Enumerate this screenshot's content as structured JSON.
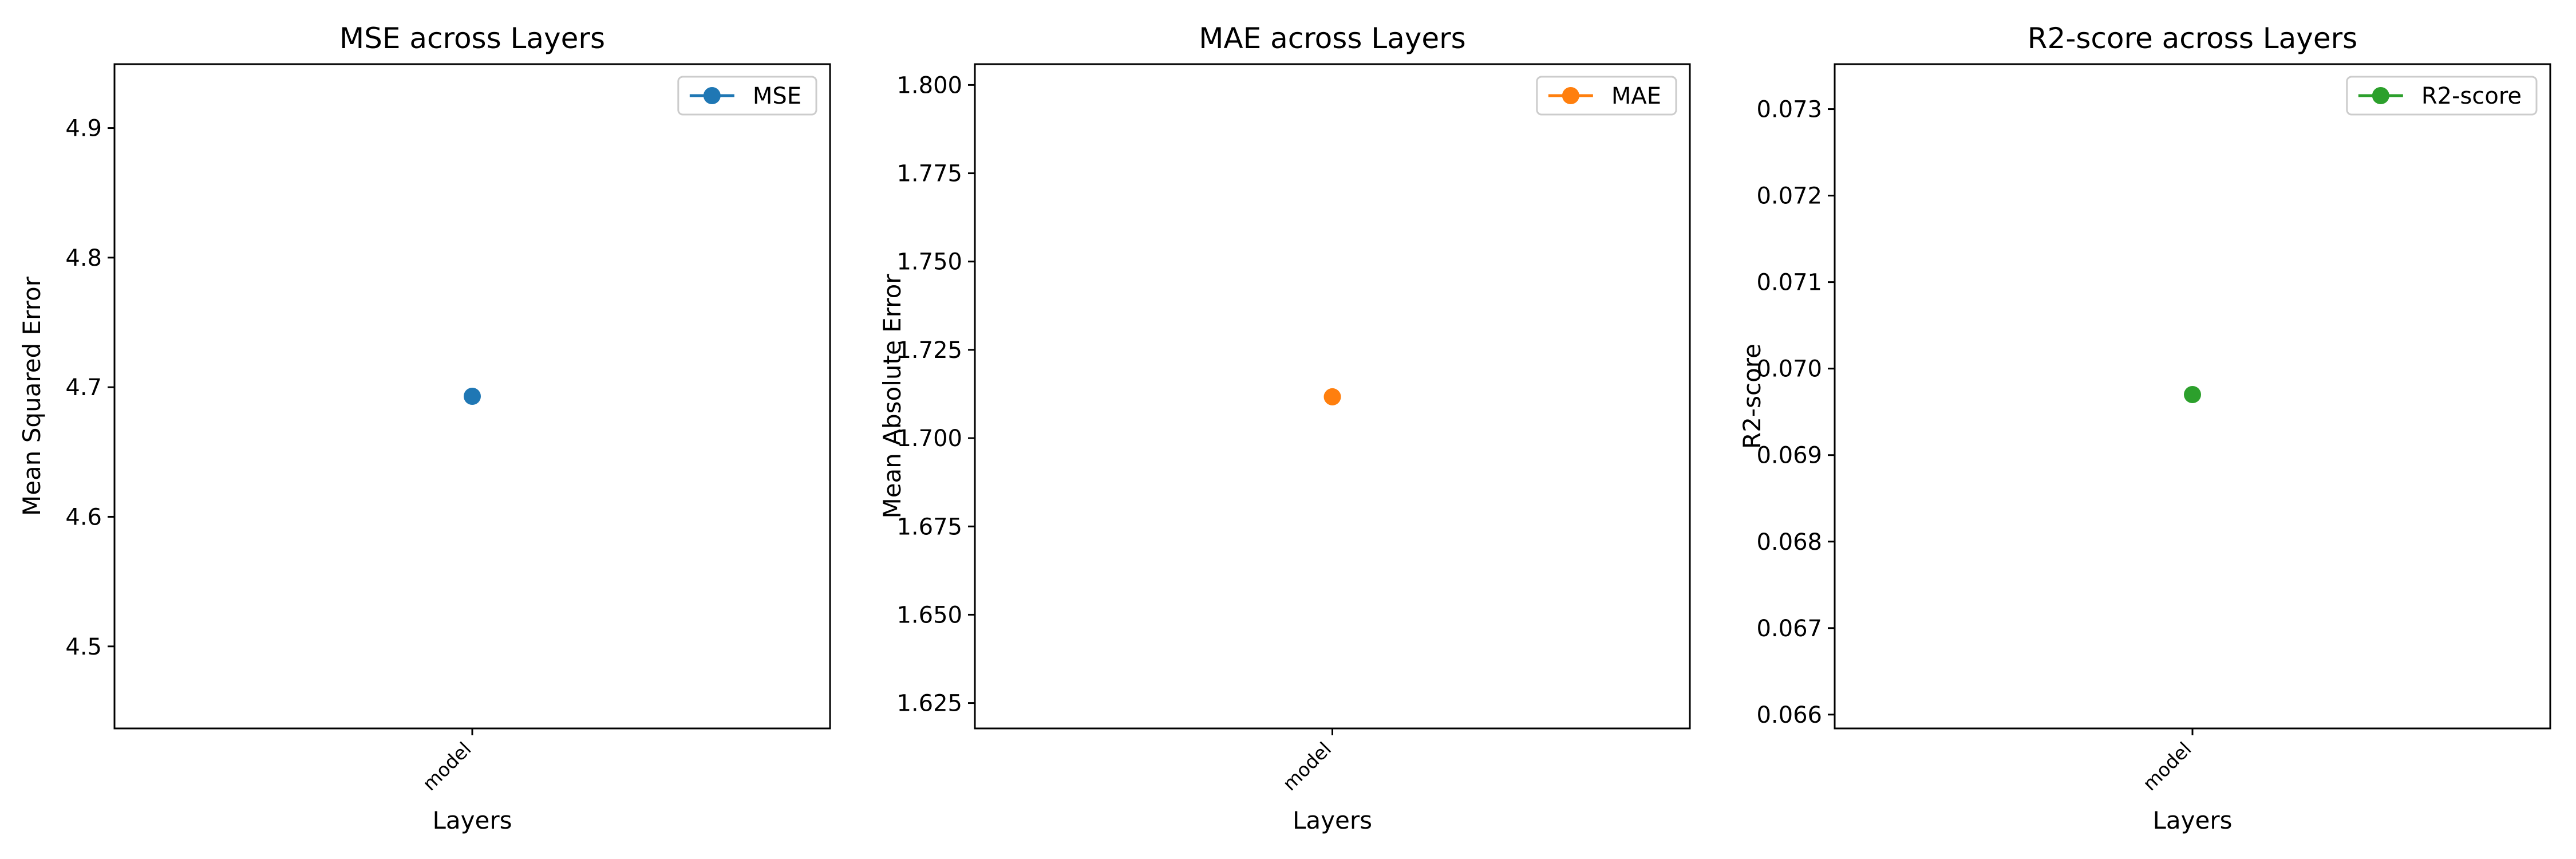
{
  "chart_data": [
    {
      "type": "line",
      "title": "MSE across Layers",
      "xlabel": "Layers",
      "ylabel": "Mean Squared Error",
      "categories": [
        "model"
      ],
      "series": [
        {
          "name": "MSE",
          "values": [
            4.693
          ],
          "color": "#1f77b4"
        }
      ],
      "ylim": [
        4.4367,
        4.9493
      ],
      "yticks": [
        4.5,
        4.6,
        4.7,
        4.8,
        4.9
      ],
      "ytick_labels": [
        "4.5",
        "4.6",
        "4.7",
        "4.8",
        "4.9"
      ],
      "legend": "top-right",
      "grid": false
    },
    {
      "type": "line",
      "title": "MAE across Layers",
      "xlabel": "Layers",
      "ylabel": "Mean Absolute Error",
      "categories": [
        "model"
      ],
      "series": [
        {
          "name": "MAE",
          "values": [
            1.7117
          ],
          "color": "#ff7f0e"
        }
      ],
      "ylim": [
        1.6178,
        1.8059
      ],
      "yticks": [
        1.625,
        1.65,
        1.675,
        1.7,
        1.725,
        1.75,
        1.775,
        1.8
      ],
      "ytick_labels": [
        "1.625",
        "1.650",
        "1.675",
        "1.700",
        "1.725",
        "1.750",
        "1.775",
        "1.800"
      ],
      "legend": "top-right",
      "grid": false
    },
    {
      "type": "line",
      "title": "R2-score across Layers",
      "xlabel": "Layers",
      "ylabel": "R2-score",
      "categories": [
        "model"
      ],
      "series": [
        {
          "name": "R2-score",
          "values": [
            0.0697
          ],
          "color": "#2ca02c"
        }
      ],
      "ylim": [
        0.06584,
        0.07352
      ],
      "yticks": [
        0.066,
        0.067,
        0.068,
        0.069,
        0.07,
        0.071,
        0.072,
        0.073
      ],
      "ytick_labels": [
        "0.066",
        "0.067",
        "0.068",
        "0.069",
        "0.070",
        "0.071",
        "0.072",
        "0.073"
      ],
      "legend": "top-right",
      "grid": false
    }
  ]
}
